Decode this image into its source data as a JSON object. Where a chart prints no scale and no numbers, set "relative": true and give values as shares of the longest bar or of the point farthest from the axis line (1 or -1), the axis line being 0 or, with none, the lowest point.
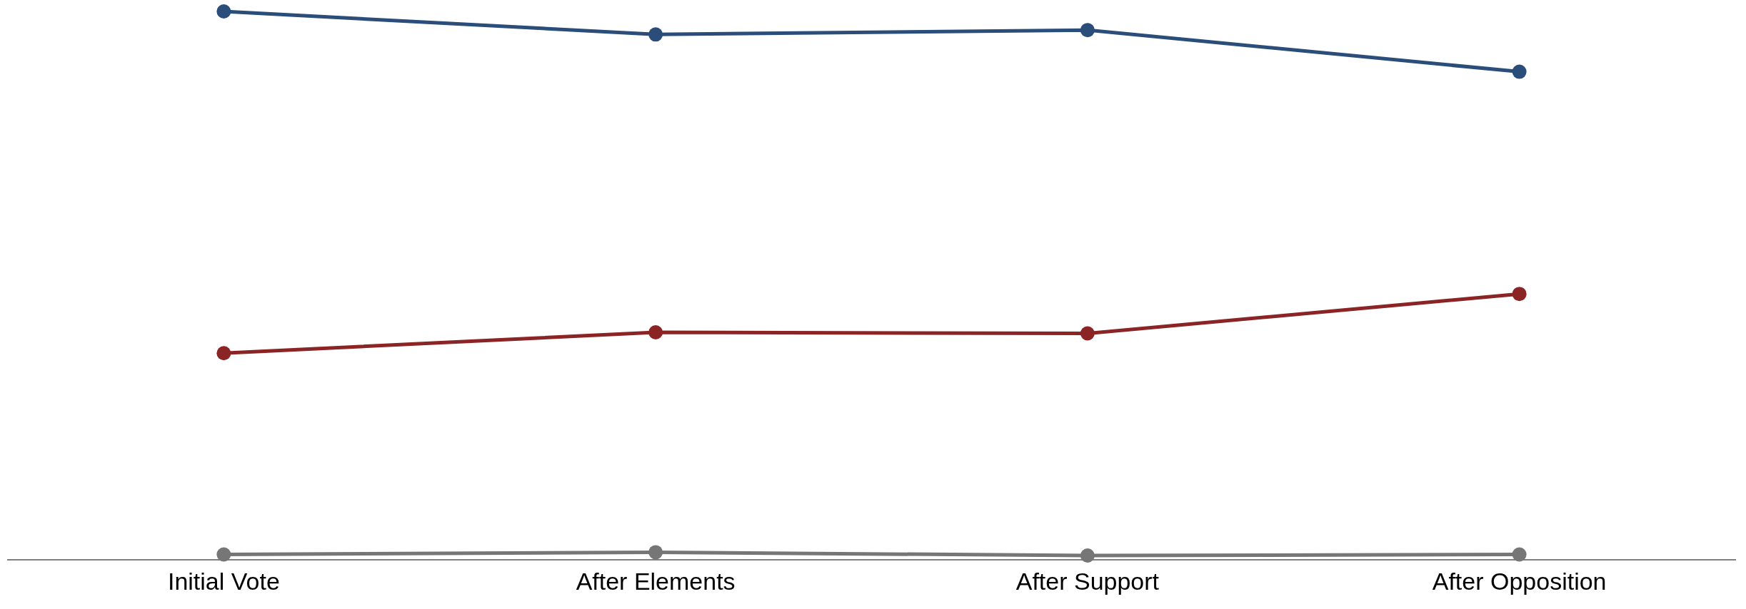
{
  "chart_data": {
    "type": "line",
    "relative": true,
    "categories": [
      "Initial Vote",
      "After Elements",
      "After Support",
      "After Opposition"
    ],
    "series": [
      {
        "color": "#2a4d7a",
        "values": [
          1,
          0.958,
          0.966,
          0.89
        ]
      },
      {
        "color": "#8b2424",
        "values": [
          0.377,
          0.415,
          0.413,
          0.485
        ]
      },
      {
        "color": "#767676",
        "values": [
          0.01,
          0.014,
          0.008,
          0.01
        ]
      }
    ],
    "grid": false,
    "legend": false,
    "marker": "circle",
    "line_style": "solid"
  }
}
